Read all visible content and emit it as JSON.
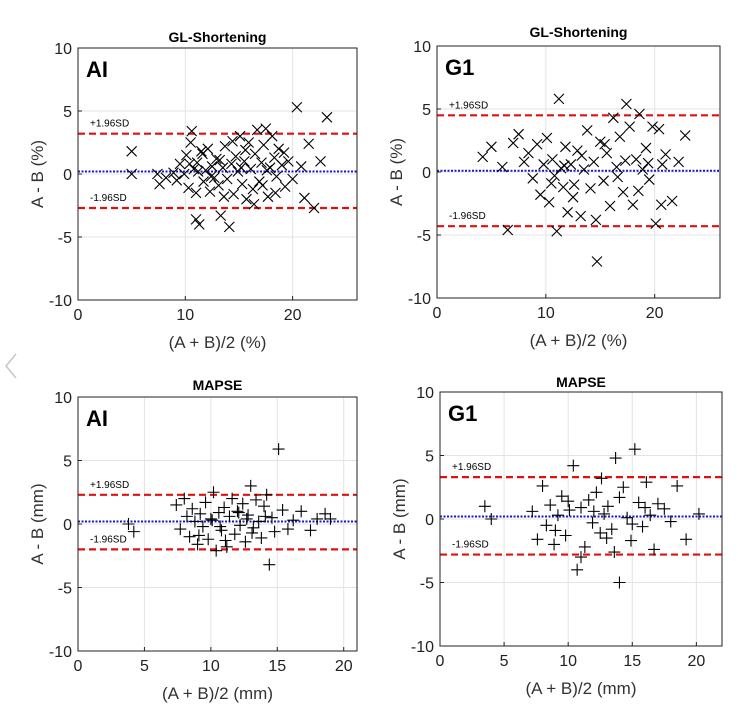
{
  "chart_data": [
    {
      "type": "scatter",
      "title": "GL-Shortening",
      "tag": "AI",
      "xlabel": "(A + B)/2 (%)",
      "ylabel": "A - B (%)",
      "xlim": [
        0,
        26
      ],
      "ylim": [
        -10,
        10
      ],
      "xticks": [
        0,
        10,
        20
      ],
      "yticks": [
        -10,
        -5,
        0,
        5,
        10
      ],
      "grid": true,
      "marker": "x",
      "mean": 0.2,
      "upper_loa": 3.2,
      "lower_loa": -2.7,
      "upper_label": "+1.96SD",
      "lower_label": "-1.96SD",
      "x": [
        5.0,
        5.0,
        7.4,
        7.6,
        8.2,
        8.9,
        9.2,
        9.5,
        9.9,
        10.1,
        10.3,
        10.5,
        10.6,
        10.8,
        11.0,
        11.0,
        11.1,
        11.3,
        11.5,
        11.7,
        11.9,
        12.1,
        12.3,
        12.5,
        12.7,
        12.9,
        13.1,
        13.3,
        13.5,
        13.7,
        13.9,
        14.1,
        14.3,
        14.5,
        14.7,
        14.9,
        15.1,
        15.3,
        15.5,
        15.7,
        15.9,
        16.1,
        16.3,
        16.5,
        16.7,
        16.9,
        17.1,
        17.3,
        17.5,
        17.7,
        17.9,
        18.1,
        18.3,
        18.5,
        18.7,
        19.0,
        19.3,
        19.6,
        20.0,
        20.4,
        20.8,
        21.1,
        21.5,
        22.0,
        22.6,
        23.2,
        10.4,
        11.6,
        12.4,
        13.6,
        14.4,
        15.6,
        16.4,
        17.6,
        18.4,
        11.2,
        13.2,
        15.2,
        17.2,
        19.2
      ],
      "y": [
        1.8,
        0.0,
        0.0,
        -0.8,
        -0.3,
        0.1,
        -0.5,
        0.8,
        0.0,
        1.5,
        -1.1,
        2.5,
        3.4,
        0.4,
        -1.5,
        -3.6,
        0.9,
        -4.0,
        1.8,
        -0.6,
        0.3,
        2.0,
        -1.4,
        0.6,
        -0.3,
        1.2,
        -0.9,
        -3.3,
        0.5,
        2.2,
        -0.4,
        -4.2,
        0.8,
        -1.6,
        1.4,
        0.2,
        3.0,
        -0.8,
        1.0,
        -2.0,
        2.5,
        0.4,
        -1.2,
        1.6,
        3.5,
        -0.6,
        0.9,
        2.3,
        3.6,
        -1.8,
        0.5,
        3.0,
        1.3,
        -0.2,
        2.0,
        0.7,
        -1.0,
        1.0,
        -0.4,
        5.3,
        0.6,
        -1.9,
        2.4,
        -2.7,
        1.0,
        4.5,
        0.8,
        1.6,
        -0.2,
        -1.8,
        2.6,
        1.9,
        -2.4,
        0.3,
        -1.5,
        0.2,
        1.1,
        0.5,
        -0.9,
        1.7
      ]
    },
    {
      "type": "scatter",
      "title": "GL-Shortening",
      "tag": "G1",
      "xlabel": "(A + B)/2 (%)",
      "ylabel": "A - B (%)",
      "xlim": [
        0,
        26
      ],
      "ylim": [
        -10,
        10
      ],
      "xticks": [
        0,
        10,
        20
      ],
      "yticks": [
        -10,
        -5,
        0,
        5,
        10
      ],
      "grid": true,
      "marker": "x",
      "mean": 0.1,
      "upper_loa": 4.5,
      "lower_loa": -4.3,
      "upper_label": "+1.96SD",
      "lower_label": "-1.96SD",
      "x": [
        4.2,
        5.0,
        6.0,
        6.5,
        7.0,
        7.5,
        8.0,
        8.4,
        8.8,
        9.2,
        9.5,
        9.8,
        10.1,
        10.3,
        10.6,
        10.8,
        11.0,
        11.2,
        11.4,
        11.6,
        11.8,
        12.0,
        12.3,
        12.6,
        12.9,
        13.2,
        13.5,
        13.8,
        14.1,
        14.4,
        14.7,
        15.0,
        15.3,
        15.6,
        15.9,
        16.2,
        16.5,
        16.8,
        17.1,
        17.4,
        17.7,
        18.0,
        18.3,
        18.6,
        18.9,
        19.2,
        19.5,
        19.8,
        20.1,
        20.4,
        20.7,
        21.0,
        21.6,
        22.2,
        22.8,
        10.5,
        11.7,
        12.5,
        13.3,
        14.6,
        15.4,
        16.6,
        17.3,
        18.5,
        19.4,
        20.6
      ],
      "y": [
        1.2,
        2.0,
        0.4,
        -4.6,
        2.3,
        3.0,
        0.8,
        1.5,
        -0.5,
        2.2,
        -1.8,
        0.6,
        2.7,
        -2.4,
        1.0,
        -0.3,
        -4.7,
        5.8,
        0.3,
        -1.2,
        2.0,
        -3.2,
        0.6,
        -1.0,
        1.7,
        -3.5,
        0.2,
        3.3,
        -1.3,
        0.8,
        -7.1,
        2.4,
        -0.7,
        1.5,
        -2.7,
        4.3,
        0.4,
        2.8,
        -1.6,
        5.4,
        3.6,
        -2.6,
        1.0,
        4.6,
        0.2,
        1.9,
        -0.6,
        3.6,
        -4.1,
        3.4,
        0.6,
        1.4,
        -2.3,
        0.8,
        2.9,
        -0.9,
        0.5,
        -2.0,
        1.3,
        -3.8,
        2.2,
        -0.4,
        0.9,
        -1.5,
        0.7,
        -2.6
      ]
    },
    {
      "type": "scatter",
      "title": "MAPSE",
      "tag": "AI",
      "xlabel": "(A + B)/2 (mm)",
      "ylabel": "A - B (mm)",
      "xlim": [
        0,
        21
      ],
      "ylim": [
        -10,
        10
      ],
      "xticks": [
        0,
        5,
        10,
        15,
        20
      ],
      "yticks": [
        -10,
        -5,
        0,
        5,
        10
      ],
      "grid": true,
      "marker": "+",
      "mean": 0.2,
      "upper_loa": 2.3,
      "lower_loa": -2.0,
      "upper_label": "+1.96SD",
      "lower_label": "-1.96SD",
      "x": [
        3.8,
        4.2,
        7.4,
        7.7,
        8.0,
        8.2,
        8.4,
        8.6,
        8.8,
        9.0,
        9.2,
        9.4,
        9.6,
        9.8,
        10.0,
        10.2,
        10.4,
        10.6,
        10.8,
        11.0,
        11.2,
        11.4,
        11.6,
        11.8,
        12.0,
        12.2,
        12.4,
        12.6,
        12.8,
        13.0,
        13.2,
        13.4,
        13.6,
        13.8,
        14.0,
        14.2,
        14.4,
        14.6,
        14.8,
        15.1,
        15.4,
        15.8,
        16.2,
        16.8,
        17.5,
        18.0,
        18.6,
        19.0,
        9.1,
        10.1,
        11.1,
        12.1,
        13.1,
        14.1,
        10.7,
        12.7
      ],
      "y": [
        0.0,
        -0.6,
        1.5,
        -0.4,
        2.0,
        0.6,
        -1.0,
        1.2,
        0.2,
        -1.6,
        0.8,
        -0.2,
        1.7,
        -1.2,
        0.4,
        2.5,
        -2.1,
        0.9,
        -0.5,
        1.3,
        -1.8,
        0.6,
        2.0,
        -0.8,
        1.0,
        -0.1,
        1.6,
        -1.4,
        0.7,
        3.0,
        -0.3,
        1.9,
        0.2,
        -1.1,
        1.4,
        2.3,
        -3.2,
        0.5,
        -0.6,
        5.9,
        1.1,
        -0.4,
        0.3,
        1.0,
        -0.5,
        0.4,
        0.8,
        0.4,
        -0.9,
        0.3,
        -1.3,
        0.9,
        -0.7,
        0.6,
        -0.2,
        0.4
      ]
    },
    {
      "type": "scatter",
      "title": "MAPSE",
      "tag": "G1",
      "xlabel": "(A + B)/2 (mm)",
      "ylabel": "A - B (mm)",
      "xlim": [
        0,
        22
      ],
      "ylim": [
        -10,
        10
      ],
      "xticks": [
        0,
        5,
        10,
        15,
        20
      ],
      "yticks": [
        -10,
        -5,
        0,
        5,
        10
      ],
      "grid": true,
      "marker": "+",
      "mean": 0.2,
      "upper_loa": 3.3,
      "lower_loa": -2.8,
      "upper_label": "+1.96SD",
      "lower_label": "-1.96SD",
      "x": [
        3.5,
        4.0,
        7.2,
        7.6,
        8.0,
        8.3,
        8.6,
        8.9,
        9.2,
        9.5,
        9.8,
        10.1,
        10.4,
        10.7,
        11.0,
        11.3,
        11.6,
        11.9,
        12.2,
        12.5,
        12.8,
        13.1,
        13.4,
        13.7,
        14.0,
        14.3,
        14.6,
        14.9,
        15.2,
        15.5,
        15.8,
        16.1,
        16.4,
        16.7,
        17.0,
        17.5,
        18.0,
        18.5,
        19.2,
        20.2,
        9.0,
        10.0,
        11.0,
        12.0,
        13.0,
        14.0,
        15.0,
        16.0,
        12.6,
        13.6
      ],
      "y": [
        1.0,
        0.0,
        0.6,
        -1.6,
        2.6,
        -0.5,
        1.1,
        -2.0,
        0.3,
        1.8,
        -1.3,
        0.7,
        4.2,
        -4.0,
        0.9,
        -2.2,
        1.5,
        -0.3,
        2.1,
        -1.1,
        0.4,
        1.0,
        -0.8,
        4.8,
        -5.0,
        2.5,
        0.1,
        -1.7,
        5.5,
        1.3,
        -0.6,
        2.9,
        0.3,
        -2.4,
        1.2,
        0.8,
        -0.2,
        2.6,
        -1.6,
        0.4,
        -0.9,
        1.4,
        -3.0,
        0.6,
        -1.5,
        1.7,
        -0.4,
        0.9,
        3.2,
        -2.6
      ]
    }
  ]
}
